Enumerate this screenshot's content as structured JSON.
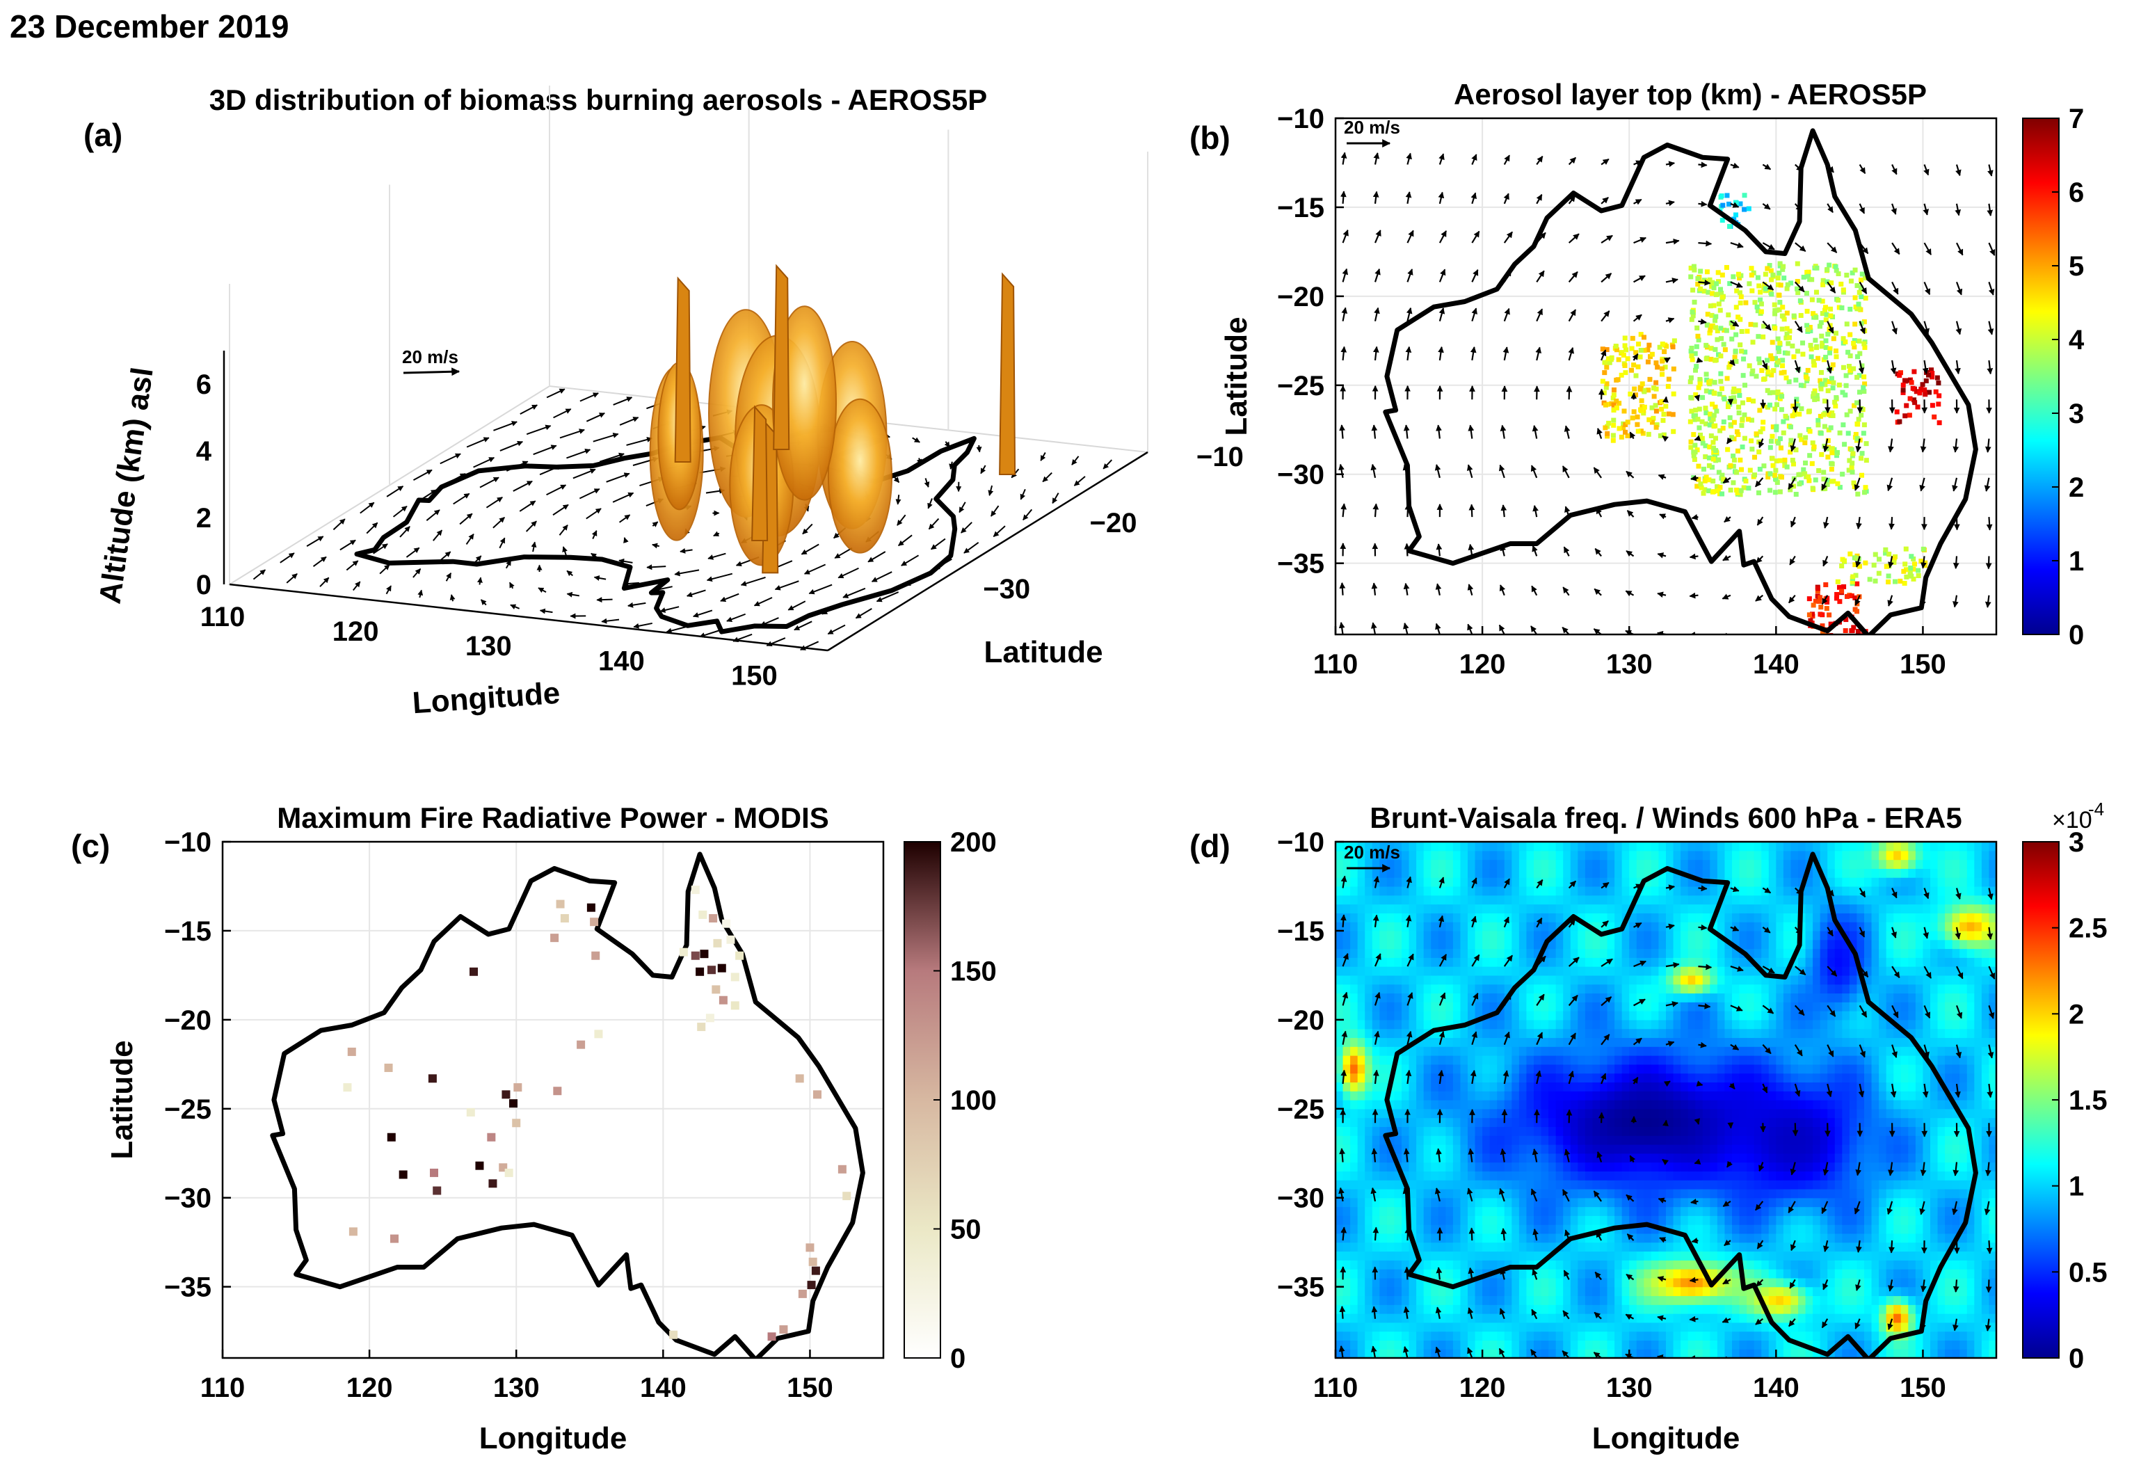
{
  "figure": {
    "date": "23 December 2019",
    "colors": {
      "coastline": "#000000",
      "aerosol_surface": "#f5a21c",
      "frp_low": "#f7f4dd",
      "frp_high": "#2a1114"
    }
  },
  "chart_data": [
    {
      "id": "a",
      "panel": "(a)",
      "type": "other",
      "subtype": "3d-isosurface",
      "title": "3D distribution of biomass burning aerosols - AEROS5P",
      "xlabel": "Longitude",
      "ylabel": "Latitude",
      "zlabel": "Altitude (km) asl",
      "x_ticks": [
        "110",
        "120",
        "130",
        "140",
        "150"
      ],
      "y_ticks": [
        "-10",
        "-20",
        "-30"
      ],
      "z_ticks": [
        "0",
        "2",
        "4",
        "6"
      ],
      "wind_reference": "20 m/s",
      "grid": true
    },
    {
      "id": "b",
      "panel": "(b)",
      "type": "scatter",
      "subtype": "gridded-map-with-wind-vectors",
      "title": "Aerosol layer top (km) - AEROS5P",
      "xlabel": "",
      "ylabel": "Latitude",
      "xlim": [
        110,
        155
      ],
      "ylim": [
        -39,
        -10
      ],
      "x_ticks": [
        "110",
        "120",
        "130",
        "140",
        "150"
      ],
      "y_ticks": [
        "-10",
        "-15",
        "-20",
        "-25",
        "-30",
        "-35"
      ],
      "colorbar": {
        "range": [
          0,
          7
        ],
        "ticks": [
          "0",
          "1",
          "2",
          "3",
          "4",
          "5",
          "6",
          "7"
        ],
        "colormap": "jet"
      },
      "wind_reference": "20 m/s",
      "grid": true,
      "regions": [
        {
          "lon": [
            134,
            146
          ],
          "lat": [
            -31,
            -18
          ],
          "value": 4.0
        },
        {
          "lon": [
            128,
            133
          ],
          "lat": [
            -28,
            -22
          ],
          "value": 4.5
        },
        {
          "lon": [
            148,
            151
          ],
          "lat": [
            -27,
            -24
          ],
          "value": 6.5
        },
        {
          "lon": [
            142,
            146
          ],
          "lat": [
            -39,
            -36
          ],
          "value": 6.0
        },
        {
          "lon": [
            144,
            150
          ],
          "lat": [
            -36,
            -34
          ],
          "value": 4.0
        },
        {
          "lon": [
            136,
            138
          ],
          "lat": [
            -16,
            -14
          ],
          "value": 2.5
        }
      ]
    },
    {
      "id": "c",
      "panel": "(c)",
      "type": "scatter",
      "subtype": "fire-pixel-map",
      "title": "Maximum Fire Radiative Power - MODIS",
      "xlabel": "Longitude",
      "ylabel": "Latitude",
      "xlim": [
        110,
        155
      ],
      "ylim": [
        -39,
        -10
      ],
      "x_ticks": [
        "110",
        "120",
        "130",
        "140",
        "150"
      ],
      "y_ticks": [
        "-10",
        "-15",
        "-20",
        "-25",
        "-30",
        "-35"
      ],
      "colorbar": {
        "range": [
          0,
          200
        ],
        "ticks": [
          "0",
          "50",
          "100",
          "150",
          "200"
        ],
        "colormap": "pink-reversed"
      },
      "grid": true,
      "points": [
        {
          "lon": 127.1,
          "lat": -17.3,
          "frp": 190
        },
        {
          "lon": 133.0,
          "lat": -13.5,
          "frp": 90
        },
        {
          "lon": 133.3,
          "lat": -14.3,
          "frp": 70
        },
        {
          "lon": 132.6,
          "lat": -15.4,
          "frp": 120
        },
        {
          "lon": 135.1,
          "lat": -13.7,
          "frp": 200
        },
        {
          "lon": 135.3,
          "lat": -14.5,
          "frp": 110
        },
        {
          "lon": 135.4,
          "lat": -16.4,
          "frp": 120
        },
        {
          "lon": 118.8,
          "lat": -21.8,
          "frp": 110
        },
        {
          "lon": 118.5,
          "lat": -23.8,
          "frp": 40
        },
        {
          "lon": 121.3,
          "lat": -22.7,
          "frp": 100
        },
        {
          "lon": 124.3,
          "lat": -23.3,
          "frp": 190
        },
        {
          "lon": 121.5,
          "lat": -26.6,
          "frp": 200
        },
        {
          "lon": 122.3,
          "lat": -28.7,
          "frp": 200
        },
        {
          "lon": 124.4,
          "lat": -28.6,
          "frp": 150
        },
        {
          "lon": 124.6,
          "lat": -29.6,
          "frp": 180
        },
        {
          "lon": 127.5,
          "lat": -28.2,
          "frp": 200
        },
        {
          "lon": 128.4,
          "lat": -29.2,
          "frp": 190
        },
        {
          "lon": 129.1,
          "lat": -28.3,
          "frp": 110
        },
        {
          "lon": 129.5,
          "lat": -28.6,
          "frp": 40
        },
        {
          "lon": 126.9,
          "lat": -25.2,
          "frp": 40
        },
        {
          "lon": 128.3,
          "lat": -26.6,
          "frp": 140
        },
        {
          "lon": 129.3,
          "lat": -24.2,
          "frp": 190
        },
        {
          "lon": 129.8,
          "lat": -24.7,
          "frp": 200
        },
        {
          "lon": 130.1,
          "lat": -23.8,
          "frp": 110
        },
        {
          "lon": 130.0,
          "lat": -25.8,
          "frp": 90
        },
        {
          "lon": 132.8,
          "lat": -24.0,
          "frp": 130
        },
        {
          "lon": 134.4,
          "lat": -21.4,
          "frp": 120
        },
        {
          "lon": 135.6,
          "lat": -20.8,
          "frp": 40
        },
        {
          "lon": 142.2,
          "lat": -12.7,
          "frp": 30
        },
        {
          "lon": 142.7,
          "lat": -14.1,
          "frp": 40
        },
        {
          "lon": 143.4,
          "lat": -14.3,
          "frp": 120
        },
        {
          "lon": 144.3,
          "lat": -14.6,
          "frp": 20
        },
        {
          "lon": 141.4,
          "lat": -16.2,
          "frp": 40
        },
        {
          "lon": 142.2,
          "lat": -16.4,
          "frp": 170
        },
        {
          "lon": 142.8,
          "lat": -16.3,
          "frp": 200
        },
        {
          "lon": 143.7,
          "lat": -15.7,
          "frp": 60
        },
        {
          "lon": 144.6,
          "lat": -15.5,
          "frp": 30
        },
        {
          "lon": 145.2,
          "lat": -16.4,
          "frp": 50
        },
        {
          "lon": 142.5,
          "lat": -17.3,
          "frp": 200
        },
        {
          "lon": 143.3,
          "lat": -17.2,
          "frp": 180
        },
        {
          "lon": 144.0,
          "lat": -17.1,
          "frp": 200
        },
        {
          "lon": 144.9,
          "lat": -17.6,
          "frp": 40
        },
        {
          "lon": 143.6,
          "lat": -18.3,
          "frp": 90
        },
        {
          "lon": 144.1,
          "lat": -18.9,
          "frp": 130
        },
        {
          "lon": 143.2,
          "lat": -19.9,
          "frp": 30
        },
        {
          "lon": 144.9,
          "lat": -19.2,
          "frp": 50
        },
        {
          "lon": 142.6,
          "lat": -20.4,
          "frp": 60
        },
        {
          "lon": 149.3,
          "lat": -23.3,
          "frp": 100
        },
        {
          "lon": 150.5,
          "lat": -24.2,
          "frp": 110
        },
        {
          "lon": 152.2,
          "lat": -28.4,
          "frp": 120
        },
        {
          "lon": 152.5,
          "lat": -29.9,
          "frp": 60
        },
        {
          "lon": 150.0,
          "lat": -32.8,
          "frp": 110
        },
        {
          "lon": 150.2,
          "lat": -33.6,
          "frp": 100
        },
        {
          "lon": 150.4,
          "lat": -34.1,
          "frp": 190
        },
        {
          "lon": 150.1,
          "lat": -34.9,
          "frp": 190
        },
        {
          "lon": 149.5,
          "lat": -35.4,
          "frp": 120
        },
        {
          "lon": 148.2,
          "lat": -37.4,
          "frp": 120
        },
        {
          "lon": 147.4,
          "lat": -37.8,
          "frp": 150
        },
        {
          "lon": 140.7,
          "lat": -37.7,
          "frp": 60
        },
        {
          "lon": 118.9,
          "lat": -31.9,
          "frp": 100
        },
        {
          "lon": 121.7,
          "lat": -32.3,
          "frp": 130
        }
      ]
    },
    {
      "id": "d",
      "panel": "(d)",
      "type": "heatmap",
      "title": "Brunt-Vaisala freq. / Winds 600 hPa - ERA5",
      "xlabel": "Longitude",
      "ylabel": "",
      "xlim": [
        110,
        155
      ],
      "ylim": [
        -39,
        -10
      ],
      "x_ticks": [
        "110",
        "120",
        "130",
        "140",
        "150"
      ],
      "y_ticks": [
        "-10",
        "-15",
        "-20",
        "-25",
        "-30",
        "-35"
      ],
      "colorbar": {
        "range": [
          0,
          3
        ],
        "ticks": [
          "0",
          "0.5",
          "1",
          "1.5",
          "2",
          "2.5",
          "3"
        ],
        "exponent": "×10",
        "exponent_power": "-4",
        "colormap": "jet"
      },
      "wind_reference": "20 m/s",
      "grid": false,
      "background_value": 1.0,
      "features": [
        {
          "lon": 131,
          "lat": -26,
          "value": 0.05,
          "sx": 10,
          "sy": 4
        },
        {
          "lon": 141,
          "lat": -27,
          "value": 0.2,
          "sx": 5,
          "sy": 3.5
        },
        {
          "lon": 144,
          "lat": -17,
          "value": 0.4,
          "sx": 2,
          "sy": 3
        },
        {
          "lon": 134,
          "lat": -35,
          "value": 2.2,
          "sx": 3,
          "sy": 1.2
        },
        {
          "lon": 140,
          "lat": -36,
          "value": 2.0,
          "sx": 2,
          "sy": 1
        },
        {
          "lon": 111,
          "lat": -23,
          "value": 2.3,
          "sx": 1,
          "sy": 1.5
        },
        {
          "lon": 153,
          "lat": -15,
          "value": 2.1,
          "sx": 2,
          "sy": 1.2
        },
        {
          "lon": 148,
          "lat": -11,
          "value": 2.0,
          "sx": 1.5,
          "sy": 1
        },
        {
          "lon": 134,
          "lat": -18,
          "value": 2.0,
          "sx": 1.5,
          "sy": 0.8
        },
        {
          "lon": 148,
          "lat": -37,
          "value": 2.3,
          "sx": 1,
          "sy": 1
        }
      ]
    }
  ]
}
